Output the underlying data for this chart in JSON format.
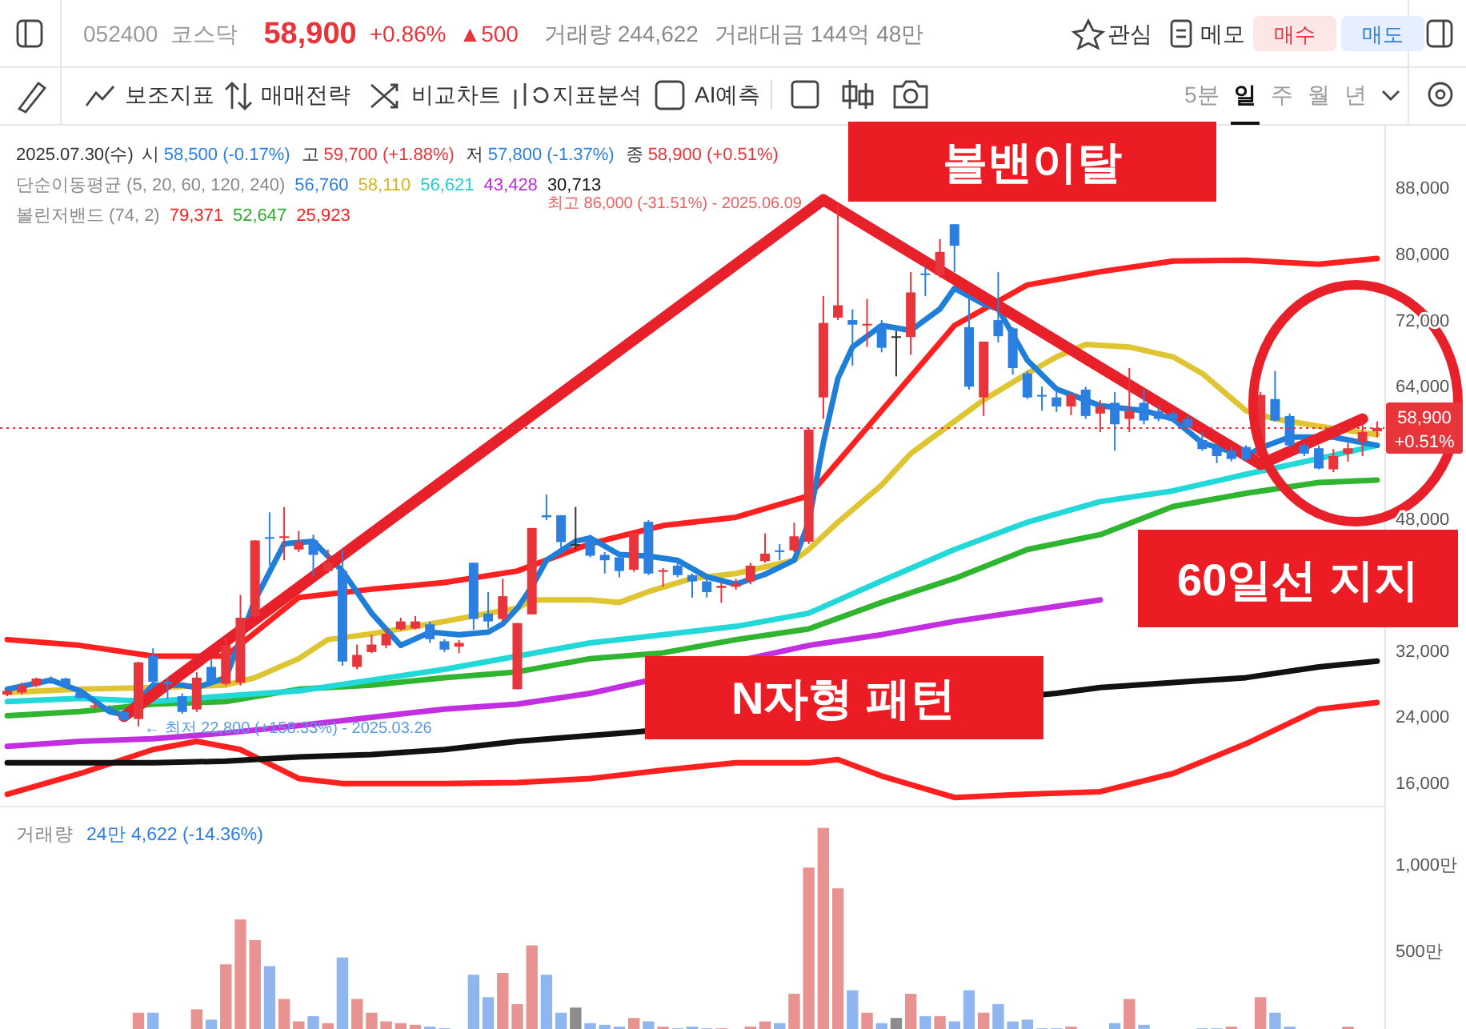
{
  "chart_data": [
    {
      "type": "candlestick",
      "categories": [
        null,
        null,
        null,
        null,
        null,
        null,
        null,
        null,
        null,
        null,
        null,
        null,
        null,
        null,
        null,
        null,
        null,
        null,
        null,
        null,
        null,
        null,
        null,
        null,
        null,
        null,
        null,
        null,
        null,
        null,
        null,
        null,
        null,
        null,
        null,
        null,
        null,
        null,
        null,
        null,
        null,
        null,
        null,
        null,
        null,
        null,
        null,
        null,
        null,
        null,
        null,
        null,
        null,
        null,
        null,
        null,
        null,
        null,
        null,
        null,
        null,
        null,
        null,
        null,
        null,
        null,
        null,
        null,
        null,
        null,
        null,
        null,
        null,
        null,
        null,
        null,
        null,
        null,
        null,
        null,
        null,
        null,
        null,
        null,
        null,
        null,
        null,
        null,
        null,
        null,
        null,
        null,
        null,
        null,
        null
      ],
      "ohlc": [
        [
          26650,
          27300,
          26450,
          27100
        ],
        [
          26900,
          28100,
          26650,
          27750
        ],
        [
          27750,
          28700,
          27550,
          28600
        ],
        [
          28600,
          28850,
          27950,
          28200
        ],
        [
          28600,
          28700,
          27600,
          27750
        ],
        [
          26900,
          27100,
          26150,
          26250
        ],
        [
          25200,
          25800,
          24950,
          25350
        ],
        [
          25050,
          25350,
          24550,
          24850
        ],
        [
          24550,
          24850,
          23450,
          23550
        ],
        [
          23700,
          30650,
          22800,
          30550
        ],
        [
          31300,
          32250,
          28100,
          28200
        ],
        [
          28200,
          28700,
          26150,
          27900
        ],
        [
          26450,
          26800,
          24350,
          24550
        ],
        [
          24850,
          29350,
          24550,
          28700
        ],
        [
          30000,
          30950,
          27900,
          28200
        ],
        [
          27950,
          33550,
          27750,
          32600
        ],
        [
          28100,
          38700,
          27750,
          35950
        ],
        [
          36150,
          45300,
          35800,
          45300
        ],
        [
          45700,
          48700,
          42300,
          45500
        ],
        [
          45600,
          49350,
          42900,
          45800
        ],
        [
          44200,
          46450,
          43900,
          45100
        ],
        [
          45300,
          46000,
          40950,
          43550
        ],
        [
          41600,
          44200,
          41300,
          42600
        ],
        [
          41600,
          44200,
          30150,
          30650
        ],
        [
          30000,
          32700,
          29700,
          31450
        ],
        [
          31800,
          33850,
          31650,
          32700
        ],
        [
          32600,
          34650,
          32250,
          34000
        ],
        [
          34550,
          35950,
          34400,
          35500
        ],
        [
          34650,
          36150,
          34550,
          35500
        ],
        [
          35150,
          35500,
          32900,
          33350
        ],
        [
          33100,
          33350,
          31800,
          32100
        ],
        [
          32450,
          33250,
          31650,
          32900
        ],
        [
          42600,
          42600,
          34500,
          35800
        ],
        [
          36450,
          39050,
          34650,
          35500
        ],
        [
          35800,
          40650,
          35500,
          38550
        ],
        [
          27300,
          35300,
          27300,
          35300
        ],
        [
          36350,
          46800,
          36350,
          46800
        ],
        [
          48350,
          50850,
          47750,
          48100
        ],
        [
          48350,
          48350,
          44200,
          45100
        ],
        [
          44850,
          49350,
          44200,
          44850
        ],
        [
          45600,
          46000,
          43250,
          43450
        ],
        [
          43550,
          43900,
          41300,
          42900
        ],
        [
          43250,
          43900,
          40850,
          41600
        ],
        [
          41750,
          46250,
          41500,
          46150
        ],
        [
          47550,
          47750,
          41100,
          41300
        ],
        [
          41500,
          41950,
          39700,
          41700
        ],
        [
          42250,
          43050,
          40850,
          41100
        ],
        [
          41100,
          41300,
          38400,
          40350
        ],
        [
          40350,
          40650,
          38400,
          39050
        ],
        [
          39550,
          40200,
          37750,
          39800
        ],
        [
          39700,
          40650,
          39350,
          40000
        ],
        [
          40350,
          42600,
          40000,
          42250
        ],
        [
          42800,
          46150,
          42600,
          43700
        ],
        [
          44100,
          44850,
          42900,
          43900
        ],
        [
          44100,
          47450,
          43900,
          45800
        ],
        [
          45150,
          58900,
          44850,
          58700
        ],
        [
          62600,
          74850,
          60000,
          71600
        ],
        [
          72250,
          86000,
          71950,
          73750
        ],
        [
          71950,
          73250,
          66450,
          71400
        ],
        [
          71300,
          74500,
          68700,
          71500
        ],
        [
          71400,
          71950,
          68050,
          68600
        ],
        [
          70000,
          70650,
          65150,
          70000
        ],
        [
          69900,
          77750,
          67750,
          75300
        ],
        [
          77600,
          78500,
          74850,
          77400
        ],
        [
          77400,
          81750,
          77100,
          80200
        ],
        [
          83550,
          83550,
          77750,
          80950
        ],
        [
          71100,
          74500,
          63550,
          63900
        ],
        [
          62600,
          69350,
          60350,
          69350
        ],
        [
          71950,
          77750,
          69250,
          70000
        ],
        [
          70950,
          71100,
          65350,
          66150
        ],
        [
          65500,
          65800,
          62400,
          62600
        ],
        [
          62900,
          63900,
          61000,
          62700
        ],
        [
          62600,
          63250,
          60850,
          61500
        ],
        [
          61500,
          63250,
          60450,
          62900
        ],
        [
          63550,
          63900,
          60000,
          60350
        ],
        [
          60650,
          62250,
          58400,
          61500
        ],
        [
          61950,
          63250,
          56150,
          59350
        ],
        [
          60000,
          66150,
          58400,
          60950
        ],
        [
          61950,
          63550,
          59350,
          59800
        ],
        [
          60950,
          61600,
          59700,
          60000
        ],
        [
          60650,
          60950,
          59550,
          60000
        ],
        [
          60000,
          60350,
          58700,
          59050
        ],
        [
          57450,
          58400,
          56150,
          56350
        ],
        [
          56450,
          56800,
          54650,
          55500
        ],
        [
          56150,
          56600,
          54850,
          55150
        ],
        [
          56600,
          56800,
          54850,
          55150
        ],
        [
          55500,
          63250,
          55150,
          62900
        ],
        [
          62400,
          65800,
          59700,
          59800
        ],
        [
          60350,
          60650,
          56450,
          56800
        ],
        [
          56800,
          57100,
          55500,
          55800
        ],
        [
          56450,
          56800,
          53900,
          54000
        ],
        [
          53900,
          56350,
          53550,
          55500
        ],
        [
          55800,
          57100,
          54850,
          56450
        ],
        [
          57250,
          59550,
          55500,
          58400
        ],
        [
          58500,
          59700,
          57800,
          58900
        ]
      ],
      "colors": [
        "#e8353b",
        "#e8353b",
        "#e8353b",
        "#2b7fe0",
        "#2b7fe0",
        "#2b7fe0",
        "#e8353b",
        "#2b7fe0",
        "#2b7fe0",
        "#e8353b",
        "#2b7fe0",
        "#2b7fe0",
        "#2b7fe0",
        "#e8353b",
        "#2b7fe0",
        "#e8353b",
        "#e8353b",
        "#e8353b",
        "#2b7fe0",
        "#e8353b",
        "#e8353b",
        "#2b7fe0",
        "#e8353b",
        "#2b7fe0",
        "#e8353b",
        "#e8353b",
        "#e8353b",
        "#e8353b",
        "#e8353b",
        "#2b7fe0",
        "#2b7fe0",
        "#e8353b",
        "#2b7fe0",
        "#2b7fe0",
        "#e8353b",
        "#e8353b",
        "#e8353b",
        "#2b7fe0",
        "#2b7fe0",
        "#333333",
        "#2b7fe0",
        "#2b7fe0",
        "#2b7fe0",
        "#e8353b",
        "#2b7fe0",
        "#e8353b",
        "#2b7fe0",
        "#2b7fe0",
        "#2b7fe0",
        "#e8353b",
        "#e8353b",
        "#e8353b",
        "#e8353b",
        "#2b7fe0",
        "#e8353b",
        "#e8353b",
        "#e8353b",
        "#e8353b",
        "#2b7fe0",
        "#e8353b",
        "#2b7fe0",
        "#333333",
        "#e8353b",
        "#2b7fe0",
        "#e8353b",
        "#2b7fe0",
        "#2b7fe0",
        "#e8353b",
        "#2b7fe0",
        "#2b7fe0",
        "#2b7fe0",
        "#2b7fe0",
        "#2b7fe0",
        "#e8353b",
        "#2b7fe0",
        "#e8353b",
        "#2b7fe0",
        "#e8353b",
        "#2b7fe0",
        "#2b7fe0",
        "#2b7fe0",
        "#2b7fe0",
        "#2b7fe0",
        "#2b7fe0",
        "#2b7fe0",
        "#2b7fe0",
        "#e8353b",
        "#2b7fe0",
        "#2b7fe0",
        "#2b7fe0",
        "#2b7fe0",
        "#e8353b",
        "#e8353b",
        "#e8353b",
        "#e8353b"
      ],
      "series": [
        {
          "type": "line",
          "color": "#ff2020",
          "values": [
            33300,
            null,
            null,
            null,
            null,
            32600,
            null,
            null,
            null,
            null,
            31300,
            null,
            null,
            null,
            null,
            31300,
            null,
            null,
            null,
            null,
            38400,
            null,
            null,
            null,
            null,
            39400,
            null,
            null,
            null,
            null,
            40200,
            null,
            null,
            null,
            null,
            41600,
            null,
            null,
            null,
            null,
            44900,
            null,
            null,
            null,
            null,
            47100,
            null,
            null,
            null,
            null,
            48100,
            null,
            null,
            null,
            null,
            50700,
            null,
            null,
            null,
            null,
            61000,
            null,
            null,
            null,
            null,
            71300,
            null,
            null,
            null,
            null,
            76200,
            null,
            null,
            null,
            null,
            77800,
            null,
            null,
            null,
            null,
            79100,
            null,
            null,
            null,
            null,
            79200,
            null,
            null,
            null,
            null,
            78700,
            null,
            null,
            null,
            79400
          ]
        },
        {
          "type": "line",
          "color": "#ff2020",
          "values": [
            14600,
            null,
            null,
            null,
            null,
            17100,
            null,
            null,
            null,
            null,
            20000,
            null,
            null,
            21000,
            null,
            null,
            20000,
            null,
            null,
            null,
            16500,
            null,
            null,
            15900,
            null,
            15900,
            null,
            null,
            null,
            null,
            15900,
            null,
            null,
            null,
            null,
            16000,
            null,
            null,
            null,
            null,
            16500,
            null,
            null,
            null,
            null,
            17500,
            null,
            null,
            null,
            null,
            18400,
            null,
            null,
            null,
            null,
            18400,
            null,
            18800,
            null,
            null,
            16800,
            null,
            null,
            null,
            null,
            14200,
            null,
            null,
            null,
            null,
            14600,
            null,
            null,
            null,
            null,
            14900,
            null,
            null,
            null,
            null,
            17100,
            null,
            null,
            null,
            null,
            20700,
            null,
            null,
            null,
            null,
            24900,
            null,
            null,
            null,
            25700
          ]
        },
        {
          "type": "line",
          "color": "#2fb52f",
          "values": [
            24100,
            null,
            null,
            null,
            null,
            24600,
            null,
            null,
            null,
            null,
            25500,
            null,
            null,
            null,
            null,
            25800,
            null,
            null,
            null,
            null,
            27300,
            null,
            null,
            null,
            null,
            27800,
            null,
            null,
            null,
            null,
            28700,
            null,
            null,
            null,
            null,
            29400,
            null,
            null,
            null,
            null,
            31000,
            null,
            null,
            null,
            null,
            31700,
            null,
            null,
            null,
            null,
            33300,
            null,
            null,
            null,
            null,
            34600,
            null,
            null,
            null,
            null,
            37800,
            null,
            null,
            null,
            null,
            40700,
            null,
            null,
            null,
            null,
            44200,
            null,
            null,
            null,
            null,
            46000,
            null,
            null,
            null,
            null,
            49400,
            null,
            null,
            null,
            null,
            51000,
            null,
            null,
            null,
            null,
            52300,
            null,
            null,
            null,
            52600
          ]
        },
        {
          "type": "line",
          "color": "#111111",
          "values": [
            18400,
            null,
            null,
            null,
            null,
            18400,
            null,
            null,
            null,
            null,
            18400,
            null,
            null,
            null,
            null,
            18600,
            null,
            null,
            null,
            null,
            19100,
            null,
            null,
            null,
            null,
            19400,
            null,
            null,
            null,
            null,
            20000,
            null,
            null,
            null,
            null,
            21000,
            null,
            null,
            null,
            null,
            21700,
            null,
            null,
            22100,
            null,
            null,
            null,
            null,
            null,
            null,
            null,
            null,
            null,
            null,
            null,
            null,
            null,
            null,
            null,
            null,
            null,
            null,
            null,
            null,
            null,
            null,
            null,
            null,
            null,
            null,
            null,
            null,
            26800,
            null,
            null,
            27500,
            null,
            null,
            null,
            null,
            28100,
            null,
            null,
            null,
            null,
            28700,
            null,
            null,
            null,
            null,
            30000,
            null,
            null,
            null,
            30700
          ]
        },
        {
          "type": "line",
          "color": "#c12fe0",
          "values": [
            20400,
            null,
            null,
            null,
            null,
            21000,
            null,
            null,
            null,
            null,
            21300,
            null,
            null,
            null,
            null,
            22000,
            null,
            null,
            null,
            null,
            22900,
            null,
            null,
            null,
            null,
            23900,
            null,
            null,
            null,
            null,
            24900,
            null,
            null,
            null,
            null,
            25500,
            null,
            null,
            null,
            null,
            26800,
            null,
            null,
            null,
            null,
            null,
            null,
            null,
            null,
            null,
            null,
            null,
            null,
            null,
            null,
            32600,
            null,
            null,
            null,
            null,
            33900,
            null,
            null,
            null,
            null,
            35500,
            null,
            null,
            null,
            null,
            36800,
            null,
            null,
            null,
            null,
            38100,
            null,
            null,
            null,
            null,
            null,
            null,
            null,
            null,
            null,
            null,
            null,
            null,
            null,
            null,
            null,
            null,
            null,
            null,
            null
          ]
        },
        {
          "type": "line",
          "color": "#22d8d8",
          "values": [
            25800,
            null,
            null,
            null,
            null,
            26200,
            null,
            null,
            null,
            null,
            25800,
            null,
            null,
            null,
            null,
            26500,
            null,
            null,
            null,
            null,
            27100,
            null,
            null,
            null,
            null,
            28400,
            null,
            null,
            null,
            null,
            29700,
            null,
            null,
            null,
            null,
            31300,
            null,
            null,
            null,
            null,
            32900,
            null,
            null,
            null,
            null,
            33900,
            null,
            null,
            null,
            null,
            34900,
            null,
            null,
            null,
            null,
            36500,
            null,
            null,
            null,
            null,
            40400,
            null,
            null,
            null,
            null,
            44200,
            null,
            null,
            null,
            null,
            47500,
            null,
            null,
            null,
            null,
            50000,
            null,
            null,
            null,
            null,
            51300,
            null,
            null,
            null,
            null,
            53300,
            null,
            null,
            null,
            null,
            55200,
            null,
            null,
            null,
            56800
          ]
        },
        {
          "type": "line",
          "color": "#e0c533",
          "values": [
            26900,
            null,
            null,
            null,
            null,
            27300,
            null,
            null,
            null,
            null,
            27500,
            null,
            null,
            null,
            null,
            27800,
            null,
            28700,
            null,
            null,
            31000,
            null,
            33300,
            null,
            null,
            34000,
            null,
            null,
            null,
            null,
            35500,
            null,
            null,
            36500,
            null,
            37100,
            38100,
            null,
            null,
            null,
            38100,
            null,
            37800,
            null,
            39100,
            null,
            null,
            40700,
            null,
            null,
            41300,
            null,
            null,
            null,
            42900,
            44200,
            null,
            47500,
            null,
            null,
            52000,
            null,
            55800,
            null,
            null,
            59700,
            null,
            62300,
            null,
            null,
            65500,
            null,
            67500,
            null,
            69000,
            null,
            null,
            68700,
            null,
            null,
            67500,
            null,
            65500,
            null,
            null,
            61000,
            null,
            60000,
            null,
            null,
            59100,
            null,
            null,
            null,
            58100
          ]
        },
        {
          "type": "line",
          "color": "#1f7fd8",
          "values": [
            27300,
            null,
            null,
            28400,
            null,
            27100,
            null,
            24600,
            24200,
            null,
            27800,
            null,
            27800,
            27500,
            null,
            28700,
            null,
            38100,
            null,
            44900,
            null,
            45200,
            null,
            41600,
            null,
            36500,
            null,
            32600,
            null,
            34200,
            null,
            33900,
            null,
            34200,
            35200,
            37100,
            39700,
            42900,
            null,
            45200,
            45600,
            null,
            43600,
            null,
            43400,
            null,
            42900,
            null,
            40900,
            null,
            40000,
            null,
            41200,
            null,
            42900,
            47500,
            57100,
            64900,
            68700,
            null,
            71300,
            null,
            70700,
            null,
            73300,
            75800,
            null,
            73900,
            73300,
            null,
            67100,
            null,
            63600,
            null,
            null,
            61600,
            null,
            null,
            61000,
            null,
            60000,
            null,
            57100,
            null,
            null,
            55500,
            56500,
            null,
            57800,
            null,
            null,
            57800,
            null,
            null,
            56800
          ]
        },
        {
          "type": "line",
          "color": "#e8202a",
          "values": [
            null,
            null,
            null,
            null,
            null,
            null,
            null,
            null,
            24000,
            null,
            null,
            null,
            null,
            null,
            null,
            null,
            null,
            null,
            null,
            null,
            null,
            null,
            null,
            null,
            null,
            null,
            null,
            null,
            null,
            null,
            null,
            null,
            null,
            null,
            null,
            null,
            null,
            null,
            null,
            null,
            null,
            null,
            null,
            null,
            null,
            null,
            null,
            null,
            null,
            null,
            null,
            null,
            null,
            null,
            null,
            null,
            86500,
            null,
            null,
            null,
            null,
            null,
            null,
            null,
            null,
            null,
            null,
            null,
            null,
            null,
            null,
            null,
            null,
            null,
            null,
            null,
            null,
            null,
            null,
            null,
            null,
            null,
            null,
            null,
            null,
            null,
            54500,
            null,
            null,
            null,
            null,
            null,
            null,
            60000,
            null
          ]
        }
      ],
      "ylim": [
        13300,
        94800
      ],
      "yticks": [
        {
          "value": 16000,
          "label": "16,000"
        },
        {
          "value": 24000,
          "label": "24,000"
        },
        {
          "value": 32000,
          "label": "32,000"
        },
        {
          "value": 48000,
          "label": "48,000"
        },
        {
          "value": 64000,
          "label": "64,000"
        },
        {
          "value": 72000,
          "label": "72,000"
        },
        {
          "value": 80000,
          "label": "80,000"
        },
        {
          "value": 88000,
          "label": "88,000"
        }
      ],
      "tick_labels": "y",
      "ref_lines": [
        {
          "axis": "y",
          "value": 58900,
          "label": "58,900 +0.51%",
          "color": "#e8353b",
          "line_style": "dotted"
        }
      ],
      "annotations": [
        "052400",
        "코스닥",
        "58,900",
        "+0.86%",
        "▲500",
        "거래량 244,622",
        "거래대금 144억 48만",
        "관심",
        "메모",
        "매수",
        "매도",
        "보조지표",
        "매매전략",
        "비교차트",
        "지표분석",
        "AI예측",
        "5분",
        "일",
        "주",
        "월",
        "년",
        "2025.07.30(수)",
        "시",
        "58,500 (-0.17%)",
        "고",
        "59,700 (+1.88%)",
        "저",
        "57,800 (-1.37%)",
        "종",
        "58,900 (+0.51%)",
        "단순이동평균 (5, 20, 60, 120, 240)",
        "56,760",
        "58,110",
        "56,621",
        "43,428",
        "30,713",
        "볼린저밴드 (74, 2)",
        "79,371",
        "52,647",
        "25,923",
        "최고 86,000 (-31.51%) - 2025.06.09",
        "← 최저 22,800 (+158.33%) - 2025.03.26",
        "볼밴이탈",
        "N자형 패턴",
        "60일선 지지"
      ]
    },
    {
      "type": "bar",
      "categories": [
        null,
        null,
        null,
        null,
        null,
        null,
        null,
        null,
        null,
        null,
        null,
        null,
        null,
        null,
        null,
        null,
        null,
        null,
        null,
        null,
        null,
        null,
        null,
        null,
        null,
        null,
        null,
        null,
        null,
        null,
        null,
        null,
        null,
        null,
        null,
        null,
        null,
        null,
        null,
        null,
        null,
        null,
        null,
        null,
        null,
        null,
        null,
        null,
        null,
        null,
        null,
        null,
        null,
        null,
        null,
        null,
        null,
        null,
        null,
        null,
        null,
        null,
        null,
        null,
        null,
        null,
        null,
        null,
        null,
        null,
        null,
        null,
        null,
        null,
        null,
        null,
        null,
        null,
        null,
        null,
        null,
        null,
        null,
        null,
        null,
        null,
        null,
        null,
        null,
        null,
        null,
        null,
        null,
        null,
        null
      ],
      "values": [
        null,
        null,
        null,
        null,
        null,
        null,
        null,
        null,
        null,
        140,
        140,
        null,
        null,
        160,
        100,
        420,
        680,
        560,
        410,
        220,
        90,
        120,
        80,
        460,
        220,
        140,
        90,
        80,
        70,
        60,
        50,
        null,
        360,
        230,
        370,
        190,
        530,
        360,
        140,
        170,
        80,
        70,
        60,
        110,
        90,
        60,
        50,
        60,
        50,
        50,
        null,
        60,
        90,
        80,
        250,
        980,
        1210,
        860,
        270,
        140,
        80,
        110,
        250,
        120,
        120,
        90,
        270,
        140,
        190,
        90,
        100,
        50,
        50,
        60,
        null,
        null,
        80,
        220,
        70,
        null,
        null,
        null,
        50,
        50,
        60,
        null,
        230,
        140,
        60,
        null,
        null,
        null,
        60,
        null,
        null
      ],
      "colors": [
        null,
        null,
        null,
        null,
        null,
        null,
        null,
        null,
        null,
        "#e99292",
        "#8fb6ef",
        null,
        null,
        "#e99292",
        "#8fb6ef",
        "#e99292",
        "#e99292",
        "#e99292",
        "#8fb6ef",
        "#e99292",
        "#e99292",
        "#8fb6ef",
        "#e99292",
        "#8fb6ef",
        "#e99292",
        "#e99292",
        "#e99292",
        "#e99292",
        "#e99292",
        "#8fb6ef",
        "#8fb6ef",
        null,
        "#8fb6ef",
        "#8fb6ef",
        "#e99292",
        "#e99292",
        "#e99292",
        "#8fb6ef",
        "#8fb6ef",
        "#8c8c8c",
        "#8fb6ef",
        "#8fb6ef",
        "#8fb6ef",
        "#e99292",
        "#8fb6ef",
        "#e99292",
        "#8fb6ef",
        "#8fb6ef",
        "#8fb6ef",
        "#e99292",
        null,
        "#e99292",
        "#e99292",
        "#8fb6ef",
        "#e99292",
        "#e99292",
        "#e99292",
        "#e99292",
        "#8fb6ef",
        "#e99292",
        "#8fb6ef",
        "#8c8c8c",
        "#e99292",
        "#8fb6ef",
        "#e99292",
        "#8fb6ef",
        "#8fb6ef",
        "#e99292",
        "#8fb6ef",
        "#8fb6ef",
        "#8fb6ef",
        "#8fb6ef",
        "#8fb6ef",
        "#e99292",
        null,
        null,
        "#8fb6ef",
        "#e99292",
        "#8fb6ef",
        null,
        null,
        null,
        "#8fb6ef",
        "#8fb6ef",
        "#e99292",
        null,
        "#e99292",
        "#8fb6ef",
        "#8fb6ef",
        null,
        null,
        null,
        "#e99292",
        null,
        null
      ],
      "ylim": [
        46,
        1324
      ],
      "yticks": [
        {
          "value": 500,
          "label": "500만"
        },
        {
          "value": 1000,
          "label": "1,000만"
        }
      ],
      "tick_labels": "y",
      "annotations": [
        "거래량",
        "24만 4,622 (-14.36%)"
      ]
    }
  ]
}
